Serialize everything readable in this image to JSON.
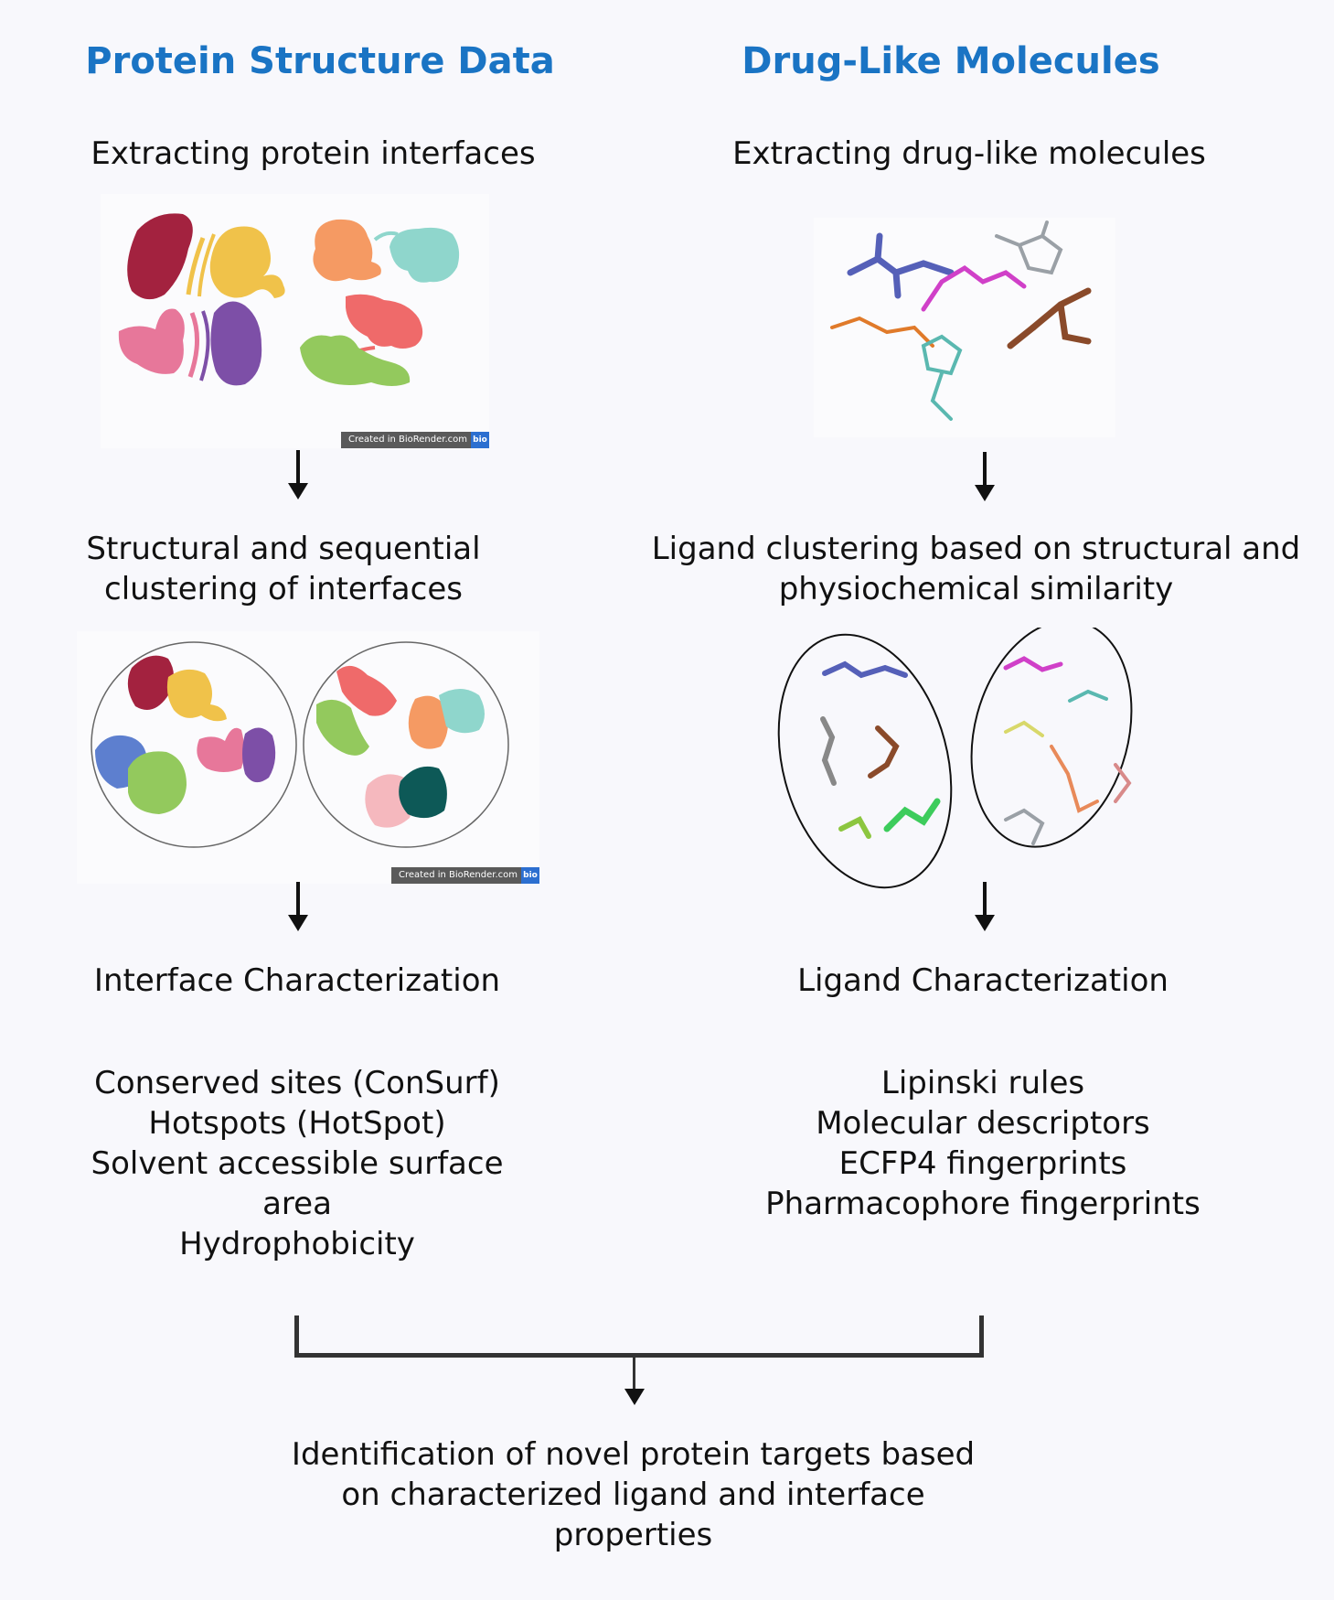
{
  "left": {
    "heading": "Protein Structure Data",
    "step1": "Extracting protein interfaces",
    "step2_lines": [
      "Structural and sequential",
      "clustering of interfaces"
    ],
    "step3": "Interface Characterization",
    "features": [
      "Conserved sites (ConSurf)",
      "Hotspots (HotSpot)",
      "Solvent accessible surface",
      "area",
      "Hydrophobicity"
    ],
    "badge_text": "Created in BioRender.com",
    "badge_logo": "bio"
  },
  "right": {
    "heading": "Drug-Like Molecules",
    "step1": "Extracting drug-like molecules",
    "step2_lines": [
      "Ligand clustering based on structural and",
      "physiochemical similarity"
    ],
    "step3": "Ligand Characterization",
    "features": [
      "Lipinski rules",
      "Molecular descriptors",
      "ECFP4 fingerprints",
      "Pharmacophore fingerprints"
    ]
  },
  "final_lines": [
    "Identification of novel protein targets based",
    "on characterized  ligand and interface",
    "properties"
  ],
  "colors": {
    "heading": "#1a74c4",
    "protein_crimson": "#a3223f",
    "protein_yellow": "#f0c24a",
    "protein_orange": "#f59a63",
    "protein_teal": "#8fd6cc",
    "protein_pink": "#e7779a",
    "protein_purple": "#7d4fa7",
    "protein_salmon": "#ef6a6a",
    "protein_green": "#93c95d",
    "protein_blue": "#5d7fcf",
    "protein_darkteal": "#0d5957",
    "protein_lightpink": "#f5b8be"
  }
}
